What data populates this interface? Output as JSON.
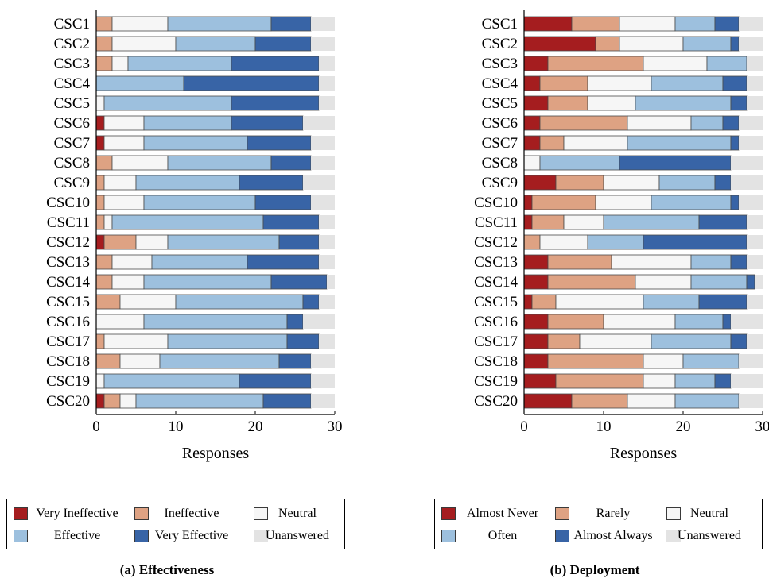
{
  "colors": {
    "c1": "#a51d1f",
    "c2": "#dea283",
    "c3": "#f6f6f6",
    "c4": "#9dc0de",
    "c5": "#3864a6",
    "c6": "#e3e3e3"
  },
  "chart_data": [
    {
      "id": "a",
      "type": "bar",
      "orientation": "horizontal",
      "stacked": true,
      "caption": "(a) Effectiveness",
      "xlabel": "Responses",
      "xlim": [
        0,
        30
      ],
      "xticks": [
        "0",
        "10",
        "20",
        "30"
      ],
      "categories": [
        "CSC1",
        "CSC2",
        "CSC3",
        "CSC4",
        "CSC5",
        "CSC6",
        "CSC7",
        "CSC8",
        "CSC9",
        "CSC10",
        "CSC11",
        "CSC12",
        "CSC13",
        "CSC14",
        "CSC15",
        "CSC16",
        "CSC17",
        "CSC18",
        "CSC19",
        "CSC20"
      ],
      "legend_position": "below",
      "series": [
        {
          "name": "Very Ineffective",
          "color_key": "c1",
          "values": [
            0,
            0,
            0,
            0,
            0,
            1,
            1,
            0,
            0,
            0,
            0,
            1,
            0,
            0,
            0,
            0,
            0,
            0,
            0,
            1
          ]
        },
        {
          "name": "Ineffective",
          "color_key": "c2",
          "values": [
            2,
            2,
            2,
            0,
            0,
            0,
            0,
            2,
            1,
            1,
            1,
            4,
            2,
            2,
            3,
            0,
            1,
            3,
            0,
            2
          ]
        },
        {
          "name": "Neutral",
          "color_key": "c3",
          "values": [
            7,
            8,
            2,
            0,
            1,
            5,
            5,
            7,
            4,
            5,
            1,
            4,
            5,
            4,
            7,
            6,
            8,
            5,
            1,
            2
          ]
        },
        {
          "name": "Effective",
          "color_key": "c4",
          "values": [
            13,
            10,
            13,
            11,
            16,
            11,
            13,
            13,
            13,
            14,
            19,
            14,
            12,
            16,
            16,
            18,
            15,
            15,
            17,
            16
          ]
        },
        {
          "name": "Very Effective",
          "color_key": "c5",
          "values": [
            5,
            7,
            11,
            17,
            11,
            9,
            8,
            5,
            8,
            7,
            7,
            5,
            9,
            7,
            2,
            2,
            4,
            4,
            9,
            6
          ]
        },
        {
          "name": "Unanswered",
          "color_key": "c6",
          "values": [
            3,
            3,
            2,
            2,
            2,
            4,
            3,
            3,
            4,
            3,
            2,
            2,
            2,
            1,
            2,
            4,
            2,
            3,
            3,
            3
          ]
        }
      ]
    },
    {
      "id": "b",
      "type": "bar",
      "orientation": "horizontal",
      "stacked": true,
      "caption": "(b) Deployment",
      "xlabel": "Responses",
      "xlim": [
        0,
        30
      ],
      "xticks": [
        "0",
        "10",
        "20",
        "30"
      ],
      "categories": [
        "CSC1",
        "CSC2",
        "CSC3",
        "CSC4",
        "CSC5",
        "CSC6",
        "CSC7",
        "CSC8",
        "CSC9",
        "CSC10",
        "CSC11",
        "CSC12",
        "CSC13",
        "CSC14",
        "CSC15",
        "CSC16",
        "CSC17",
        "CSC18",
        "CSC19",
        "CSC20"
      ],
      "legend_position": "below",
      "series": [
        {
          "name": "Almost Never",
          "color_key": "c1",
          "values": [
            6,
            9,
            3,
            2,
            3,
            2,
            2,
            0,
            4,
            1,
            1,
            0,
            3,
            3,
            1,
            3,
            3,
            3,
            4,
            6
          ]
        },
        {
          "name": "Rarely",
          "color_key": "c2",
          "values": [
            6,
            3,
            12,
            6,
            5,
            11,
            3,
            0,
            6,
            8,
            4,
            2,
            8,
            11,
            3,
            7,
            4,
            12,
            11,
            7
          ]
        },
        {
          "name": "Neutral",
          "color_key": "c3",
          "values": [
            7,
            8,
            8,
            8,
            6,
            8,
            8,
            2,
            7,
            7,
            5,
            6,
            10,
            7,
            11,
            9,
            9,
            5,
            4,
            6
          ]
        },
        {
          "name": "Often",
          "color_key": "c4",
          "values": [
            5,
            6,
            5,
            9,
            12,
            4,
            13,
            10,
            7,
            10,
            12,
            7,
            5,
            7,
            7,
            6,
            10,
            7,
            5,
            8
          ]
        },
        {
          "name": "Almost Always",
          "color_key": "c5",
          "values": [
            3,
            1,
            0,
            3,
            2,
            2,
            1,
            14,
            2,
            1,
            6,
            13,
            2,
            1,
            6,
            1,
            2,
            0,
            2,
            0
          ]
        },
        {
          "name": "Unanswered",
          "color_key": "c6",
          "values": [
            3,
            3,
            2,
            2,
            2,
            3,
            3,
            4,
            4,
            3,
            2,
            2,
            2,
            1,
            2,
            4,
            2,
            3,
            4,
            3
          ]
        }
      ]
    }
  ]
}
